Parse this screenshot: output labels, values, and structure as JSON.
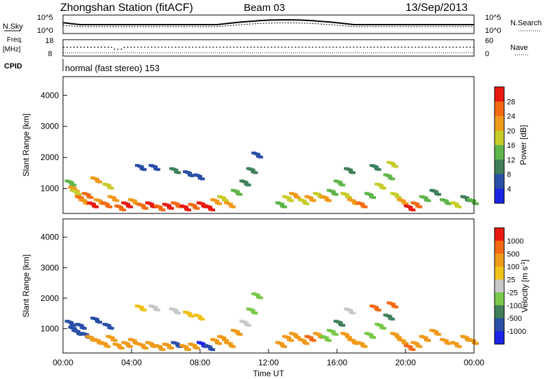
{
  "header": {
    "station": "Zhongshan Station (fitACF)",
    "beam": "Beam 03",
    "date": "13/Sep/2013"
  },
  "info_panels": {
    "nsky_label": "N.Sky",
    "nsky_ticks": [
      "10^5",
      "10^0"
    ],
    "nsearch_label": "N.Search",
    "nsearch_ticks": [
      "10^5",
      "10^0"
    ],
    "freq_label_1": "Freq.",
    "freq_label_2": "[MHz]",
    "freq_ticks": [
      "18",
      "8"
    ],
    "nave_label": "Nave",
    "nave_ticks": [
      "60",
      "0"
    ],
    "cpid_label": "CPID",
    "cpid_text": "normal (fast stereo) 153"
  },
  "chart_data": [
    {
      "type": "heatmap",
      "name": "power",
      "ylabel": "Slant Range [km]",
      "yticks": [
        "1000",
        "2000",
        "3000",
        "4000"
      ],
      "ylim": [
        200,
        4600
      ],
      "xlim": [
        0,
        24
      ],
      "colorbar_label": "Power [dB]",
      "colorbar_ticks": [
        "4",
        "8",
        "12",
        "16",
        "20",
        "24",
        "28"
      ],
      "colors": [
        "#1a24e6",
        "#2a4fa8",
        "#3f7f5a",
        "#5fb64a",
        "#c8cc2a",
        "#f09a1a",
        "#f36a12",
        "#e81a10"
      ],
      "cells": [
        [
          0.3,
          1200,
          3
        ],
        [
          0.5,
          1000,
          5
        ],
        [
          0.6,
          900,
          4
        ],
        [
          0.9,
          700,
          6
        ],
        [
          1.1,
          600,
          5
        ],
        [
          1.3,
          800,
          6
        ],
        [
          1.6,
          500,
          7
        ],
        [
          2.0,
          600,
          5
        ],
        [
          2.4,
          500,
          6
        ],
        [
          2.8,
          700,
          5
        ],
        [
          3.2,
          400,
          6
        ],
        [
          3.6,
          500,
          7
        ],
        [
          4.0,
          600,
          5
        ],
        [
          4.5,
          450,
          6
        ],
        [
          5.0,
          500,
          7
        ],
        [
          5.5,
          400,
          6
        ],
        [
          6.0,
          450,
          7
        ],
        [
          6.5,
          500,
          6
        ],
        [
          7.0,
          400,
          7
        ],
        [
          7.5,
          450,
          6
        ],
        [
          8.0,
          500,
          7
        ],
        [
          8.4,
          400,
          7
        ],
        [
          8.8,
          600,
          5
        ],
        [
          9.2,
          700,
          4
        ],
        [
          9.6,
          500,
          5
        ],
        [
          10.0,
          900,
          3
        ],
        [
          10.5,
          1200,
          2
        ],
        [
          10.9,
          1600,
          2
        ],
        [
          11.2,
          2100,
          1
        ],
        [
          7.2,
          1500,
          1
        ],
        [
          7.8,
          1400,
          1
        ],
        [
          6.4,
          1600,
          2
        ],
        [
          5.2,
          1700,
          1
        ],
        [
          4.4,
          1700,
          1
        ],
        [
          2.5,
          1100,
          4
        ],
        [
          1.8,
          1300,
          5
        ],
        [
          13.0,
          700,
          4
        ],
        [
          13.4,
          800,
          5
        ],
        [
          13.9,
          600,
          4
        ],
        [
          14.3,
          700,
          5
        ],
        [
          14.8,
          800,
          4
        ],
        [
          15.2,
          700,
          5
        ],
        [
          15.6,
          900,
          3
        ],
        [
          16.0,
          1200,
          3
        ],
        [
          16.4,
          800,
          4
        ],
        [
          16.8,
          600,
          5
        ],
        [
          17.3,
          500,
          6
        ],
        [
          17.8,
          800,
          3
        ],
        [
          18.4,
          1100,
          4
        ],
        [
          18.9,
          1400,
          3
        ],
        [
          19.3,
          800,
          4
        ],
        [
          19.7,
          600,
          5
        ],
        [
          20.1,
          400,
          7
        ],
        [
          20.5,
          500,
          6
        ],
        [
          21.0,
          700,
          3
        ],
        [
          21.6,
          900,
          2
        ],
        [
          22.2,
          600,
          3
        ],
        [
          22.8,
          500,
          4
        ],
        [
          23.4,
          700,
          2
        ],
        [
          23.8,
          600,
          3
        ],
        [
          12.6,
          500,
          3
        ],
        [
          19.1,
          1800,
          4
        ],
        [
          18.1,
          1700,
          2
        ],
        [
          16.6,
          1600,
          2
        ]
      ]
    },
    {
      "type": "heatmap",
      "name": "velocity",
      "ylabel": "Slant Range [km]",
      "yticks": [
        "1000",
        "2000",
        "3000",
        "4000"
      ],
      "ylim": [
        200,
        4600
      ],
      "xlim": [
        0,
        24
      ],
      "xlabel": "Time UT",
      "xticks": [
        "00:00",
        "04:00",
        "08:00",
        "12:00",
        "16:00",
        "20:00",
        "00:00"
      ],
      "colorbar_label": "Velocity [m s^-1]",
      "colorbar_ticks": [
        "1000",
        "500",
        "100",
        "25",
        "-25",
        "-100",
        "-500",
        "-1000"
      ],
      "colors": [
        "#1a24e6",
        "#2a4fa8",
        "#3f7f5a",
        "#7ac84a",
        "#c8c8c8",
        "#f0c21a",
        "#f09a1a",
        "#f36a12",
        "#e81a10"
      ],
      "cells": [
        [
          0.3,
          1200,
          1
        ],
        [
          0.5,
          1000,
          1
        ],
        [
          0.7,
          900,
          1
        ],
        [
          0.9,
          1100,
          1
        ],
        [
          1.2,
          800,
          1
        ],
        [
          1.5,
          700,
          6
        ],
        [
          1.9,
          600,
          6
        ],
        [
          2.3,
          500,
          6
        ],
        [
          2.7,
          700,
          6
        ],
        [
          3.1,
          450,
          6
        ],
        [
          3.6,
          500,
          6
        ],
        [
          4.0,
          600,
          6
        ],
        [
          4.5,
          450,
          6
        ],
        [
          5.0,
          500,
          6
        ],
        [
          5.5,
          400,
          6
        ],
        [
          6.0,
          450,
          6
        ],
        [
          6.5,
          500,
          1
        ],
        [
          7.0,
          400,
          6
        ],
        [
          7.5,
          450,
          6
        ],
        [
          8.0,
          500,
          0
        ],
        [
          8.4,
          400,
          1
        ],
        [
          8.8,
          600,
          6
        ],
        [
          9.2,
          700,
          6
        ],
        [
          9.6,
          500,
          6
        ],
        [
          10.0,
          900,
          6
        ],
        [
          10.5,
          1200,
          4
        ],
        [
          10.9,
          1600,
          3
        ],
        [
          11.2,
          2100,
          3
        ],
        [
          7.2,
          1500,
          5
        ],
        [
          7.8,
          1400,
          5
        ],
        [
          6.4,
          1600,
          4
        ],
        [
          5.2,
          1700,
          4
        ],
        [
          4.4,
          1700,
          5
        ],
        [
          2.5,
          1100,
          1
        ],
        [
          1.8,
          1300,
          1
        ],
        [
          13.0,
          700,
          6
        ],
        [
          13.4,
          800,
          6
        ],
        [
          13.9,
          600,
          6
        ],
        [
          14.3,
          700,
          7
        ],
        [
          14.8,
          800,
          6
        ],
        [
          15.2,
          700,
          3
        ],
        [
          15.6,
          900,
          3
        ],
        [
          16.0,
          1200,
          2
        ],
        [
          16.4,
          800,
          6
        ],
        [
          16.8,
          600,
          6
        ],
        [
          17.3,
          500,
          6
        ],
        [
          17.8,
          800,
          3
        ],
        [
          18.4,
          1100,
          3
        ],
        [
          18.9,
          1400,
          2
        ],
        [
          19.3,
          800,
          6
        ],
        [
          19.7,
          600,
          6
        ],
        [
          20.1,
          400,
          7
        ],
        [
          20.5,
          500,
          6
        ],
        [
          21.0,
          700,
          6
        ],
        [
          21.6,
          900,
          6
        ],
        [
          22.2,
          600,
          6
        ],
        [
          22.8,
          500,
          6
        ],
        [
          23.4,
          700,
          6
        ],
        [
          23.8,
          600,
          6
        ],
        [
          12.6,
          500,
          6
        ],
        [
          19.1,
          1800,
          7
        ],
        [
          18.1,
          1700,
          7
        ],
        [
          16.6,
          1600,
          4
        ]
      ]
    }
  ]
}
